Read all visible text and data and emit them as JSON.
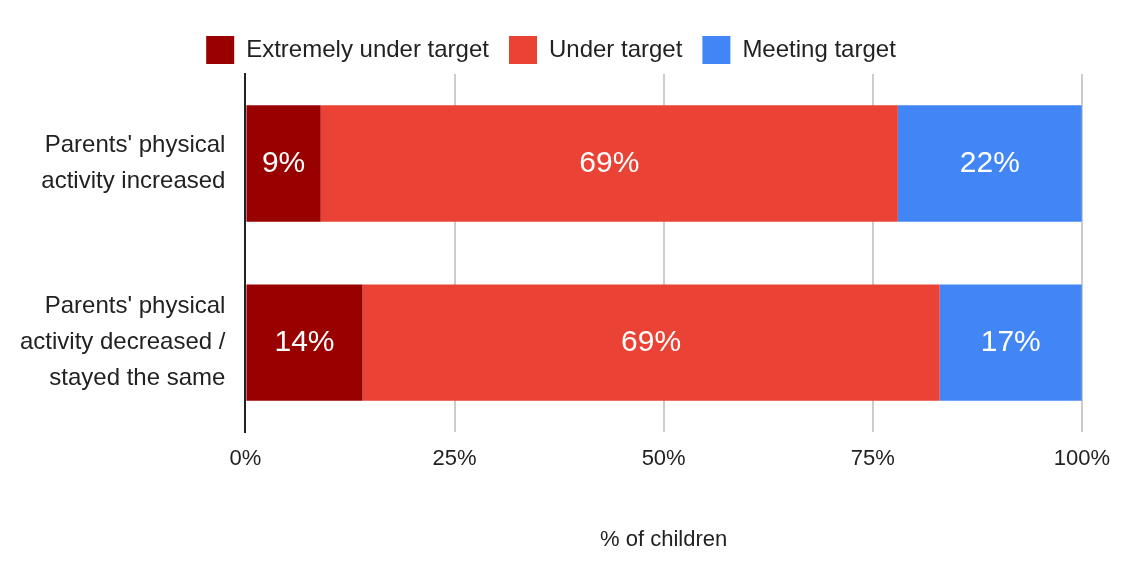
{
  "chart_data": {
    "type": "bar",
    "orientation": "horizontal",
    "stacked": true,
    "categories": [
      "Parents' physical activity increased",
      "Parents' physical activity decreased / stayed the same"
    ],
    "series": [
      {
        "name": "Extremely under target",
        "color": "#990000",
        "values": [
          9,
          14
        ],
        "value_labels": [
          "9%",
          "14%"
        ]
      },
      {
        "name": "Under target",
        "color": "#ea4335",
        "values": [
          69,
          69
        ],
        "value_labels": [
          "69%",
          "69%"
        ]
      },
      {
        "name": "Meeting target",
        "color": "#4285f4",
        "values": [
          22,
          17
        ],
        "value_labels": [
          "22%",
          "17%"
        ]
      }
    ],
    "xlim": [
      0,
      100
    ],
    "xticks": [
      {
        "value": 0,
        "label": "0%"
      },
      {
        "value": 25,
        "label": "25%"
      },
      {
        "value": 50,
        "label": "50%"
      },
      {
        "value": 75,
        "label": "75%"
      },
      {
        "value": 100,
        "label": "100%"
      }
    ],
    "xlabel": "% of children",
    "grid": "x",
    "legend": "top"
  }
}
